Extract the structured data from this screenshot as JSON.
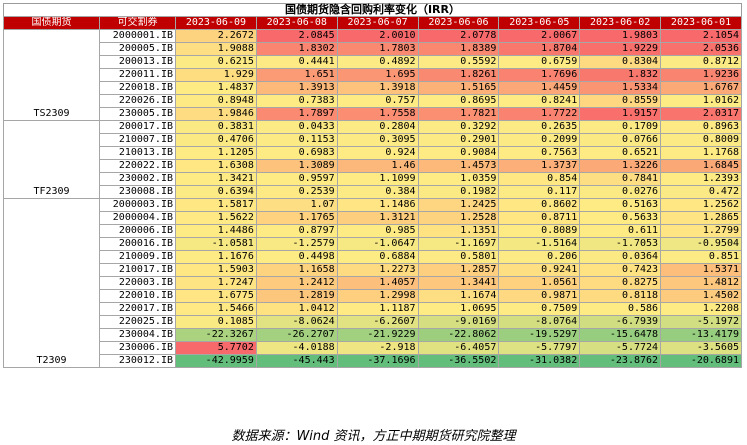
{
  "title": "国债期货隐含回购利率变化（IRR）",
  "columns": {
    "contract": "国债期货",
    "bond": "可交割券",
    "dates": [
      "2023-06-09",
      "2023-06-08",
      "2023-06-07",
      "2023-06-06",
      "2023-06-05",
      "2023-06-02",
      "2023-06-01"
    ]
  },
  "groups": [
    {
      "name": "TS2309",
      "rows": [
        {
          "code": "2000001.IB",
          "values": [
            "2.2672",
            "2.0845",
            "2.0010",
            "2.0778",
            "2.0067",
            "1.9803",
            "2.1054"
          ]
        },
        {
          "code": "200005.IB",
          "values": [
            "1.9088",
            "1.8302",
            "1.7803",
            "1.8389",
            "1.8704",
            "1.9229",
            "2.0536"
          ]
        },
        {
          "code": "200013.IB",
          "values": [
            "0.6215",
            "0.4441",
            "0.4892",
            "0.5592",
            "0.6759",
            "0.8304",
            "0.8712"
          ]
        },
        {
          "code": "220011.IB",
          "values": [
            "1.929",
            "1.651",
            "1.695",
            "1.8261",
            "1.7696",
            "1.832",
            "1.9236"
          ]
        },
        {
          "code": "220018.IB",
          "values": [
            "1.4837",
            "1.3913",
            "1.3918",
            "1.5165",
            "1.4459",
            "1.5334",
            "1.6767"
          ]
        },
        {
          "code": "220026.IB",
          "values": [
            "0.8948",
            "0.7383",
            "0.757",
            "0.8695",
            "0.8241",
            "0.8559",
            "1.0162"
          ]
        },
        {
          "code": "230005.IB",
          "values": [
            "1.9846",
            "1.7897",
            "1.7558",
            "1.7821",
            "1.7722",
            "1.9157",
            "2.0317"
          ]
        }
      ]
    },
    {
      "name": "TF2309",
      "rows": [
        {
          "code": "200017.IB",
          "values": [
            "0.3831",
            "0.0433",
            "0.2804",
            "0.3292",
            "0.2635",
            "0.1709",
            "0.8963"
          ]
        },
        {
          "code": "210007.IB",
          "values": [
            "0.4706",
            "0.1153",
            "0.3095",
            "0.2901",
            "0.2099",
            "0.0766",
            "0.8009"
          ]
        },
        {
          "code": "210013.IB",
          "values": [
            "1.1205",
            "0.6983",
            "0.924",
            "0.9084",
            "0.7563",
            "0.6521",
            "1.1768"
          ]
        },
        {
          "code": "220022.IB",
          "values": [
            "1.6308",
            "1.3089",
            "1.46",
            "1.4573",
            "1.3737",
            "1.3226",
            "1.6845"
          ]
        },
        {
          "code": "230002.IB",
          "values": [
            "1.3421",
            "0.9597",
            "1.1099",
            "1.0359",
            "0.854",
            "0.7841",
            "1.2393"
          ]
        },
        {
          "code": "230008.IB",
          "values": [
            "0.6394",
            "0.2539",
            "0.384",
            "0.1982",
            "0.117",
            "0.0276",
            "0.472"
          ]
        }
      ]
    },
    {
      "name": "T2309",
      "rows": [
        {
          "code": "2000003.IB",
          "values": [
            "1.5817",
            "1.07",
            "1.1486",
            "1.2425",
            "0.8602",
            "0.5163",
            "1.2562"
          ]
        },
        {
          "code": "2000004.IB",
          "values": [
            "1.5622",
            "1.1765",
            "1.3121",
            "1.2528",
            "0.8711",
            "0.5633",
            "1.2865"
          ]
        },
        {
          "code": "200006.IB",
          "values": [
            "1.4486",
            "0.8797",
            "0.985",
            "1.1351",
            "0.8089",
            "0.611",
            "1.2799"
          ]
        },
        {
          "code": "200016.IB",
          "values": [
            "-1.0581",
            "-1.2579",
            "-1.0647",
            "-1.1697",
            "-1.5164",
            "-1.7053",
            "-0.9504"
          ]
        },
        {
          "code": "210009.IB",
          "values": [
            "1.1676",
            "0.4498",
            "0.6884",
            "0.5801",
            "0.206",
            "0.0364",
            "0.851"
          ]
        },
        {
          "code": "210017.IB",
          "values": [
            "1.5903",
            "1.1658",
            "1.2273",
            "1.2857",
            "0.9241",
            "0.7423",
            "1.5371"
          ]
        },
        {
          "code": "220003.IB",
          "values": [
            "1.7247",
            "1.2412",
            "1.4057",
            "1.3441",
            "1.0561",
            "0.8275",
            "1.4812"
          ]
        },
        {
          "code": "220010.IB",
          "values": [
            "1.6775",
            "1.2819",
            "1.2998",
            "1.1674",
            "0.9871",
            "0.8118",
            "1.4502"
          ]
        },
        {
          "code": "220017.IB",
          "values": [
            "1.5466",
            "1.0412",
            "1.1187",
            "1.0695",
            "0.7509",
            "0.586",
            "1.2208"
          ]
        },
        {
          "code": "220025.IB",
          "values": [
            "0.1085",
            "-8.0624",
            "-6.2607",
            "-9.0169",
            "-8.0764",
            "-6.7939",
            "-5.1972"
          ]
        },
        {
          "code": "230004.IB",
          "values": [
            "-22.3267",
            "-26.2707",
            "-21.9229",
            "-22.8062",
            "-19.5297",
            "-15.6478",
            "-13.4179"
          ]
        },
        {
          "code": "230006.IB",
          "values": [
            "5.7702",
            "-4.0188",
            "-2.918",
            "-6.4057",
            "-5.7797",
            "-5.7724",
            "-3.5605"
          ]
        },
        {
          "code": "230012.IB",
          "values": [
            "-42.9959",
            "-45.443",
            "-37.1696",
            "-36.5502",
            "-31.0382",
            "-23.8762",
            "-20.6891"
          ]
        }
      ]
    }
  ],
  "footer": "数据来源：Wind 资讯，方正中期期货研究院整理",
  "colors": {
    "header_bg": "#c00000",
    "high": "#f8696b",
    "mid": "#ffeb84",
    "low": "#63be7b"
  }
}
